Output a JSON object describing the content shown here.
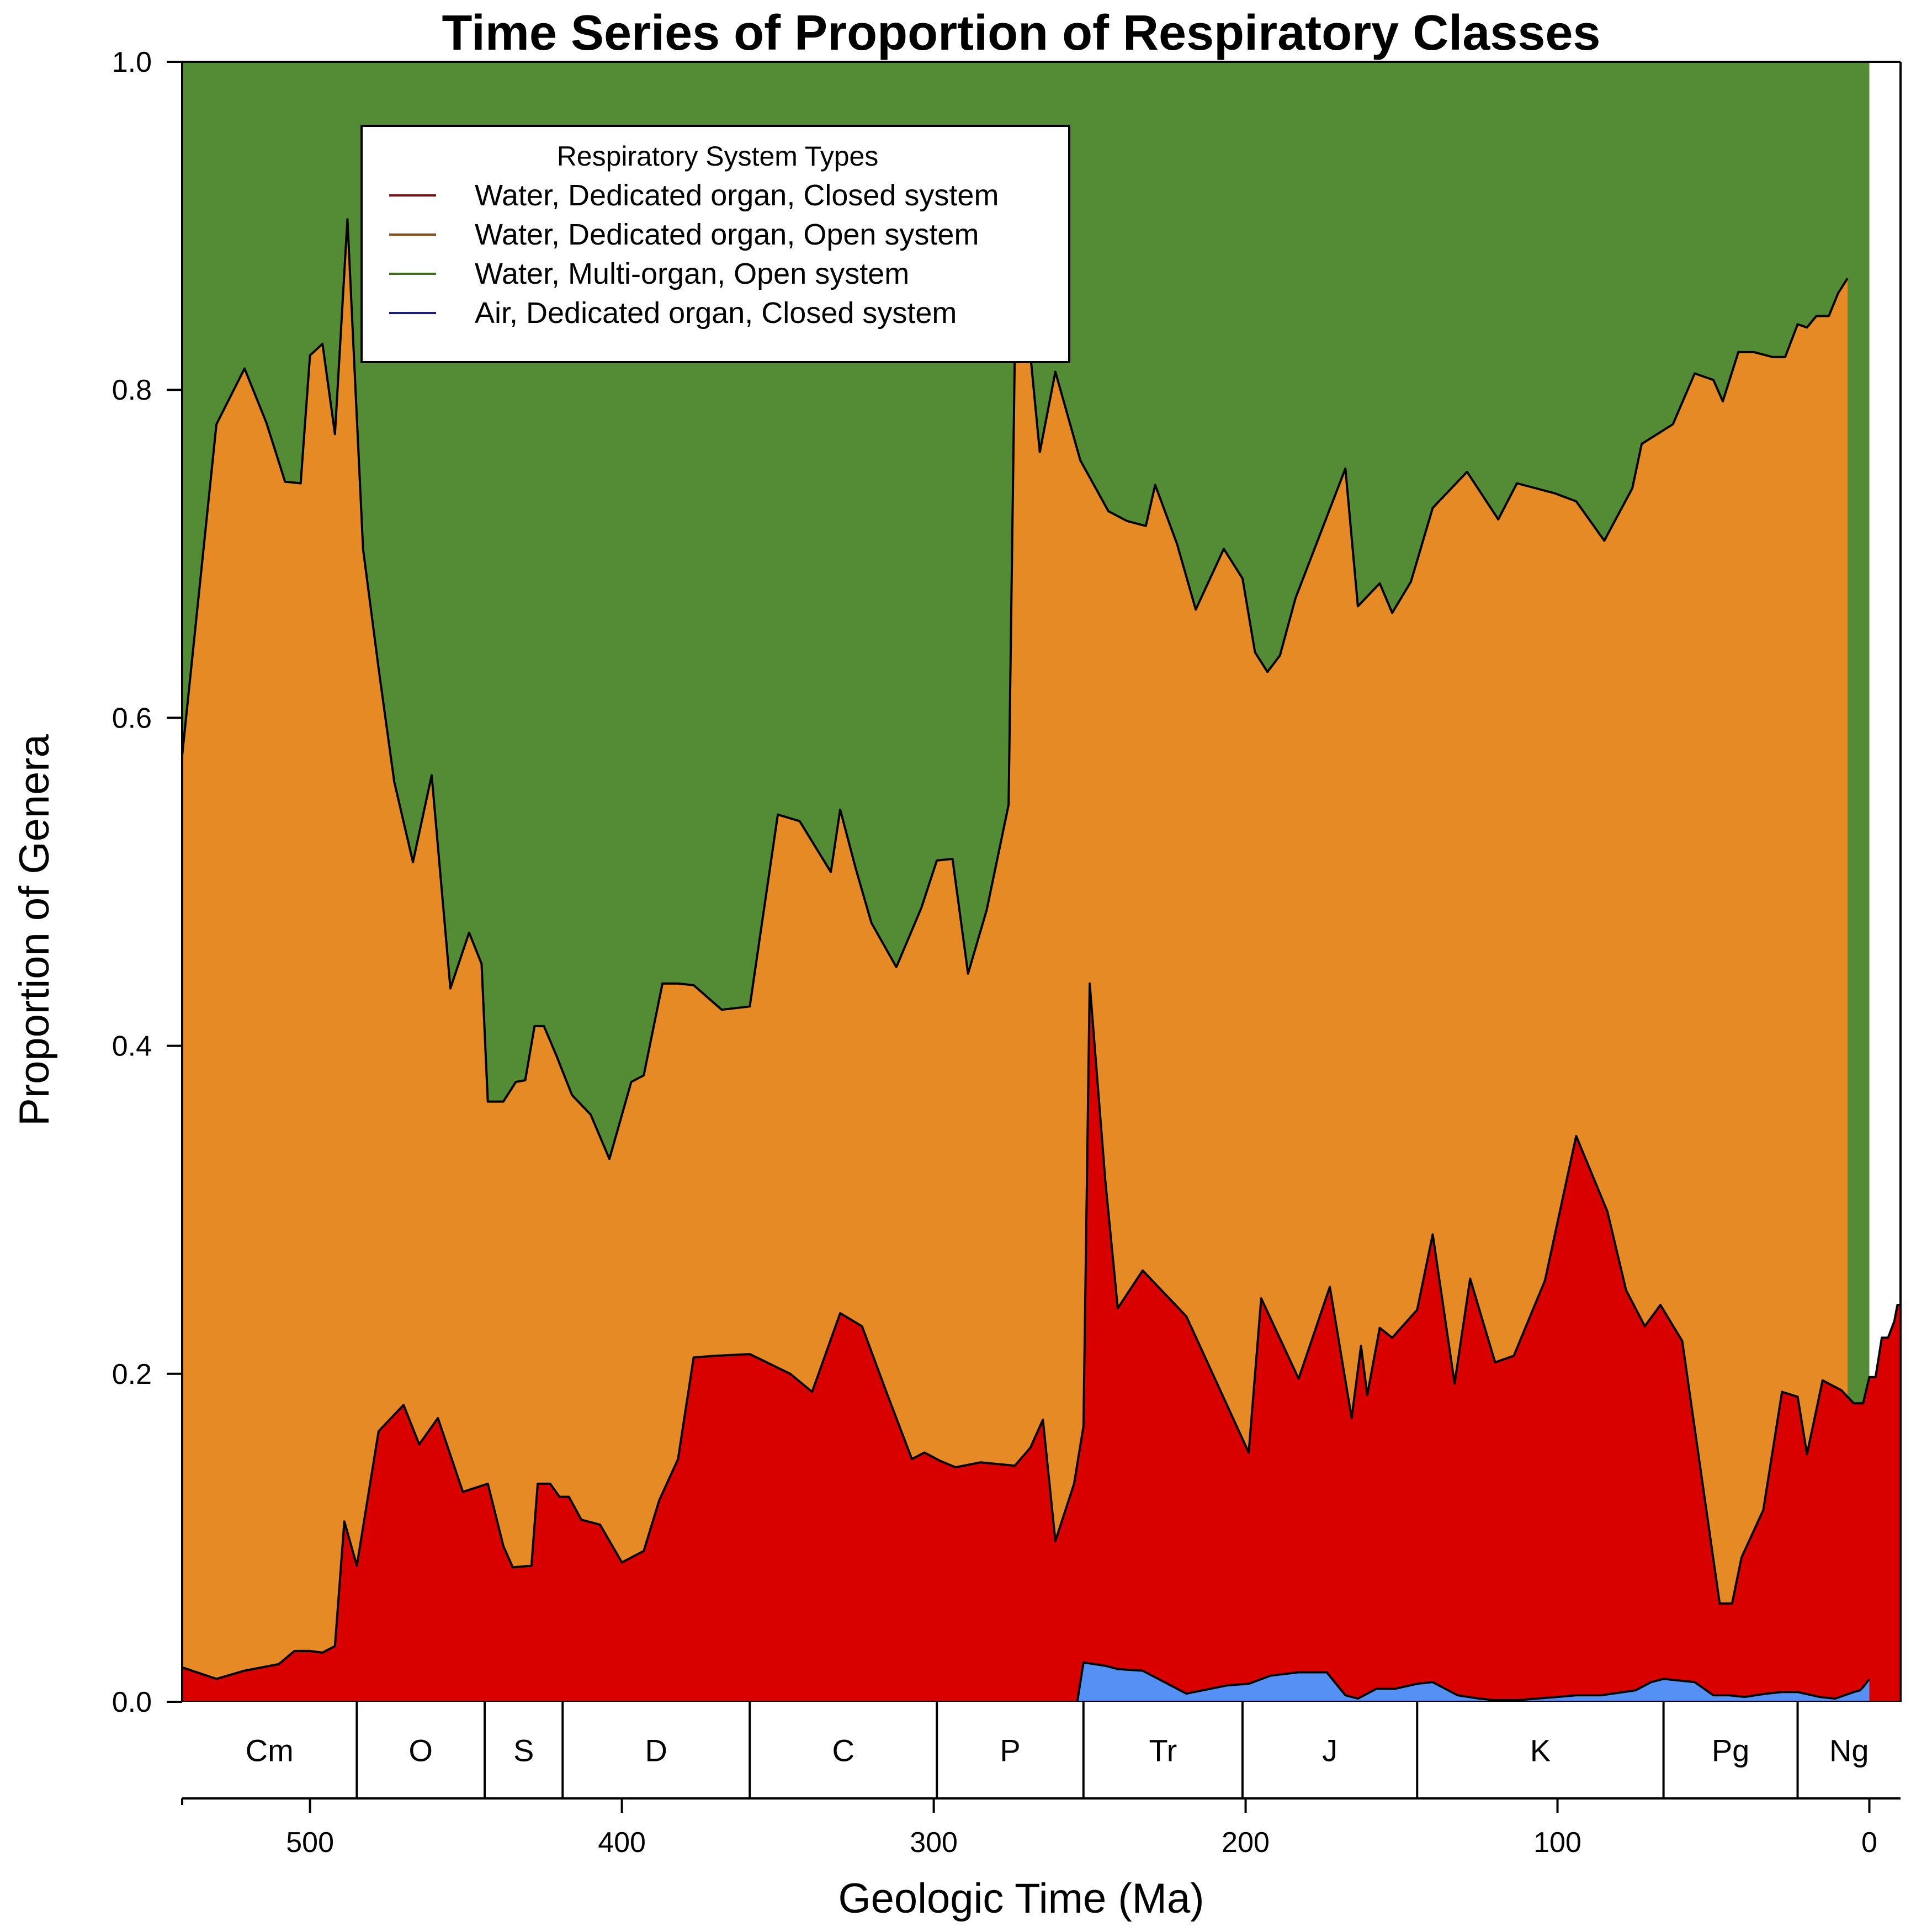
{
  "chart_data": {
    "type": "area",
    "stacked": true,
    "title": "Time Series of Proportion of Respiratory Classes",
    "xlabel": "Geologic Time (Ma)",
    "ylabel": "Proportion of Genera",
    "xlim": [
      541,
      0
    ],
    "ylim": [
      0,
      1
    ],
    "x_ticks": [
      500,
      400,
      300,
      200,
      100,
      0
    ],
    "y_ticks": [
      "0.0",
      "0.2",
      "0.4",
      "0.6",
      "0.8",
      "1.0"
    ],
    "legend": {
      "title": "Respiratory System Types",
      "position": "top-left",
      "entries": [
        {
          "label": "Water, Dedicated organ, Closed system",
          "color": "#7a1010"
        },
        {
          "label": "Water, Dedicated organ, Open system",
          "color": "#8b4a14"
        },
        {
          "label": "Water, Multi-organ, Open system",
          "color": "#3f6e1e"
        },
        {
          "label": "Air, Dedicated organ, Closed system",
          "color": "#1a1a8c"
        }
      ]
    },
    "fill_colors": {
      "air_closed": "#5590f5",
      "water_closed": "#d90000",
      "water_open": "#e58a25",
      "water_multi": "#548b35"
    },
    "periods": [
      {
        "label": "Cm",
        "start": 541,
        "end": 485
      },
      {
        "label": "O",
        "start": 485,
        "end": 444
      },
      {
        "label": "S",
        "start": 444,
        "end": 419
      },
      {
        "label": "D",
        "start": 419,
        "end": 359
      },
      {
        "label": "C",
        "start": 359,
        "end": 299
      },
      {
        "label": "P",
        "start": 299,
        "end": 252
      },
      {
        "label": "Tr",
        "start": 252,
        "end": 201
      },
      {
        "label": "J",
        "start": 201,
        "end": 145
      },
      {
        "label": "K",
        "start": 145,
        "end": 66
      },
      {
        "label": "Pg",
        "start": 66,
        "end": 23
      },
      {
        "label": "Ng",
        "start": 23,
        "end": 0
      }
    ],
    "series": [
      {
        "key": "air_closed",
        "points": [
          [
            254,
            0
          ],
          [
            252,
            0.024
          ],
          [
            245,
            0.022
          ],
          [
            241,
            0.02
          ],
          [
            233,
            0.019
          ],
          [
            219,
            0.005
          ],
          [
            206,
            0.01
          ],
          [
            199,
            0.011
          ],
          [
            192,
            0.016
          ],
          [
            183,
            0.018
          ],
          [
            174,
            0.018
          ],
          [
            168,
            0.004
          ],
          [
            164,
            0.002
          ],
          [
            158,
            0.008
          ],
          [
            152,
            0.008
          ],
          [
            145,
            0.011
          ],
          [
            140,
            0.012
          ],
          [
            132,
            0.004
          ],
          [
            125,
            0.002
          ],
          [
            120,
            0.001
          ],
          [
            113,
            0.001
          ],
          [
            100,
            0.003
          ],
          [
            94,
            0.004
          ],
          [
            86,
            0.004
          ],
          [
            75,
            0.007
          ],
          [
            70,
            0.012
          ],
          [
            66,
            0.014
          ],
          [
            56,
            0.012
          ],
          [
            50,
            0.004
          ],
          [
            45,
            0.004
          ],
          [
            40,
            0.003
          ],
          [
            33,
            0.005
          ],
          [
            28,
            0.006
          ],
          [
            23,
            0.006
          ],
          [
            16,
            0.003
          ],
          [
            11,
            0.002
          ],
          [
            5,
            0.006
          ],
          [
            3,
            0.007
          ],
          [
            2,
            0.009
          ],
          [
            0,
            0.014
          ]
        ]
      },
      {
        "key": "water_closed",
        "points": [
          [
            541,
            0.021
          ],
          [
            530,
            0.014
          ],
          [
            521,
            0.019
          ],
          [
            510,
            0.023
          ],
          [
            505,
            0.031
          ],
          [
            500,
            0.031
          ],
          [
            496,
            0.03
          ],
          [
            492,
            0.034
          ],
          [
            489,
            0.11
          ],
          [
            485,
            0.083
          ],
          [
            478,
            0.165
          ],
          [
            470,
            0.181
          ],
          [
            465,
            0.157
          ],
          [
            459,
            0.173
          ],
          [
            451,
            0.128
          ],
          [
            443,
            0.133
          ],
          [
            438,
            0.095
          ],
          [
            435,
            0.082
          ],
          [
            429,
            0.083
          ],
          [
            427,
            0.133
          ],
          [
            423,
            0.133
          ],
          [
            420,
            0.125
          ],
          [
            417,
            0.125
          ],
          [
            413,
            0.111
          ],
          [
            407,
            0.108
          ],
          [
            400,
            0.085
          ],
          [
            393,
            0.092
          ],
          [
            388,
            0.123
          ],
          [
            382,
            0.148
          ],
          [
            377,
            0.21
          ],
          [
            370,
            0.211
          ],
          [
            359,
            0.212
          ],
          [
            346,
            0.2
          ],
          [
            339,
            0.189
          ],
          [
            330,
            0.237
          ],
          [
            323,
            0.229
          ],
          [
            315,
            0.188
          ],
          [
            307,
            0.148
          ],
          [
            303,
            0.152
          ],
          [
            298,
            0.147
          ],
          [
            293,
            0.143
          ],
          [
            285,
            0.146
          ],
          [
            274,
            0.144
          ],
          [
            269,
            0.155
          ],
          [
            265,
            0.172
          ],
          [
            261,
            0.098
          ],
          [
            255,
            0.133
          ],
          [
            252,
            0.168
          ],
          [
            250,
            0.438
          ],
          [
            245,
            0.318
          ],
          [
            241,
            0.24
          ],
          [
            233,
            0.263
          ],
          [
            219,
            0.235
          ],
          [
            206,
            0.181
          ],
          [
            199,
            0.152
          ],
          [
            195,
            0.246
          ],
          [
            183,
            0.197
          ],
          [
            173,
            0.253
          ],
          [
            166,
            0.173
          ],
          [
            163,
            0.217
          ],
          [
            161,
            0.187
          ],
          [
            157,
            0.228
          ],
          [
            153,
            0.222
          ],
          [
            145,
            0.239
          ],
          [
            140,
            0.285
          ],
          [
            133,
            0.194
          ],
          [
            128,
            0.258
          ],
          [
            120,
            0.207
          ],
          [
            114,
            0.211
          ],
          [
            104,
            0.257
          ],
          [
            94,
            0.345
          ],
          [
            84,
            0.299
          ],
          [
            78,
            0.251
          ],
          [
            72,
            0.229
          ],
          [
            67,
            0.242
          ],
          [
            60,
            0.22
          ],
          [
            48,
            0.06
          ],
          [
            44,
            0.06
          ],
          [
            41,
            0.088
          ],
          [
            34,
            0.117
          ],
          [
            28,
            0.189
          ],
          [
            23,
            0.186
          ],
          [
            20,
            0.151
          ],
          [
            15,
            0.196
          ],
          [
            9,
            0.19
          ],
          [
            5,
            0.182
          ],
          [
            2,
            0.182
          ],
          [
            0,
            0.198
          ],
          [
            -2,
            0.198
          ],
          [
            -4,
            0.222
          ],
          [
            -6,
            0.222
          ],
          [
            -8,
            0.232
          ],
          [
            -9,
            0.242
          ],
          [
            -10,
            0.242
          ]
        ]
      },
      {
        "key": "water_open",
        "points": [
          [
            541,
            0.577
          ],
          [
            530,
            0.779
          ],
          [
            521,
            0.813
          ],
          [
            514,
            0.78
          ],
          [
            508,
            0.744
          ],
          [
            503,
            0.743
          ],
          [
            500,
            0.821
          ],
          [
            496,
            0.828
          ],
          [
            492,
            0.773
          ],
          [
            488,
            0.904
          ],
          [
            483,
            0.703
          ],
          [
            478,
            0.63
          ],
          [
            473,
            0.561
          ],
          [
            467,
            0.512
          ],
          [
            461,
            0.565
          ],
          [
            455,
            0.435
          ],
          [
            449,
            0.469
          ],
          [
            445,
            0.45
          ],
          [
            443,
            0.366
          ],
          [
            438,
            0.366
          ],
          [
            434,
            0.378
          ],
          [
            431,
            0.379
          ],
          [
            428,
            0.412
          ],
          [
            425,
            0.412
          ],
          [
            421,
            0.394
          ],
          [
            416,
            0.37
          ],
          [
            410,
            0.358
          ],
          [
            404,
            0.331
          ],
          [
            397,
            0.378
          ],
          [
            393,
            0.382
          ],
          [
            387,
            0.438
          ],
          [
            382,
            0.438
          ],
          [
            377,
            0.437
          ],
          [
            368,
            0.422
          ],
          [
            359,
            0.424
          ],
          [
            350,
            0.541
          ],
          [
            343,
            0.537
          ],
          [
            333,
            0.506
          ],
          [
            330,
            0.544
          ],
          [
            325,
            0.508
          ],
          [
            320,
            0.475
          ],
          [
            312,
            0.448
          ],
          [
            304,
            0.484
          ],
          [
            299,
            0.513
          ],
          [
            294,
            0.514
          ],
          [
            289,
            0.444
          ],
          [
            283,
            0.483
          ],
          [
            276,
            0.547
          ],
          [
            274,
            0.825
          ],
          [
            272,
            0.88
          ],
          [
            266,
            0.762
          ],
          [
            261,
            0.811
          ],
          [
            253,
            0.757
          ],
          [
            244,
            0.726
          ],
          [
            238,
            0.72
          ],
          [
            232,
            0.717
          ],
          [
            229,
            0.742
          ],
          [
            222,
            0.706
          ],
          [
            216,
            0.666
          ],
          [
            207,
            0.703
          ],
          [
            201,
            0.685
          ],
          [
            197,
            0.64
          ],
          [
            193,
            0.628
          ],
          [
            189,
            0.638
          ],
          [
            184,
            0.673
          ],
          [
            168,
            0.752
          ],
          [
            164,
            0.668
          ],
          [
            157,
            0.682
          ],
          [
            153,
            0.664
          ],
          [
            147,
            0.683
          ],
          [
            140,
            0.728
          ],
          [
            129,
            0.75
          ],
          [
            119,
            0.721
          ],
          [
            113,
            0.743
          ],
          [
            107,
            0.74
          ],
          [
            101,
            0.737
          ],
          [
            94,
            0.732
          ],
          [
            85,
            0.708
          ],
          [
            76,
            0.74
          ],
          [
            73,
            0.767
          ],
          [
            63,
            0.779
          ],
          [
            56,
            0.81
          ],
          [
            50,
            0.806
          ],
          [
            47,
            0.793
          ],
          [
            42,
            0.823
          ],
          [
            37,
            0.823
          ],
          [
            31,
            0.82
          ],
          [
            27,
            0.82
          ],
          [
            23,
            0.84
          ],
          [
            20,
            0.838
          ],
          [
            17,
            0.845
          ],
          [
            13,
            0.845
          ],
          [
            10,
            0.859
          ],
          [
            7,
            0.868
          ]
        ]
      },
      {
        "key": "water_multi",
        "points": [
          [
            541,
            1
          ],
          [
            0,
            1
          ]
        ]
      }
    ]
  }
}
